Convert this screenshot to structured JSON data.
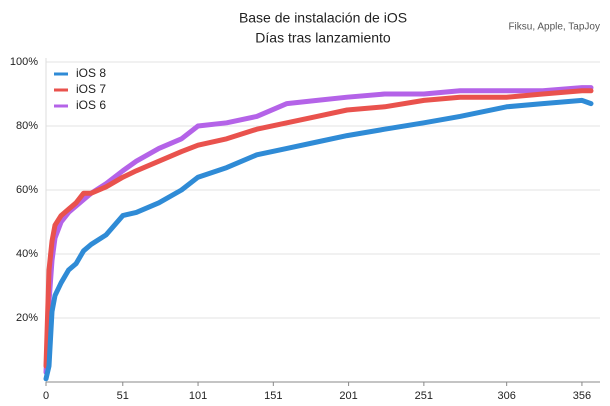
{
  "chart_data": {
    "type": "line",
    "title": "Base de instalación de iOS",
    "subtitle": "Días tras lanzamiento",
    "source": "Fiksu, Apple, TapJoy",
    "x": [
      0,
      2,
      4,
      6,
      10,
      15,
      20,
      25,
      30,
      40,
      51,
      60,
      75,
      90,
      101,
      120,
      140,
      160,
      180,
      200,
      225,
      251,
      275,
      306,
      330,
      356,
      362
    ],
    "series": [
      {
        "name": "iOS 8",
        "color": "#2f8bd6",
        "values": [
          1,
          5,
          22,
          27,
          31,
          35,
          37,
          41,
          43,
          46,
          52,
          53,
          56,
          60,
          64,
          67,
          71,
          73,
          75,
          77,
          79,
          81,
          83,
          86,
          87,
          88,
          87
        ]
      },
      {
        "name": "iOS 7",
        "color": "#e9524d",
        "values": [
          5,
          35,
          44,
          49,
          52,
          54,
          56,
          59,
          59,
          61,
          64,
          66,
          69,
          72,
          74,
          76,
          79,
          81,
          83,
          85,
          86,
          88,
          89,
          89,
          90,
          91,
          91
        ]
      },
      {
        "name": "iOS 6",
        "color": "#b463e8",
        "values": [
          3,
          25,
          38,
          45,
          50,
          53,
          55,
          57,
          59,
          62,
          66,
          69,
          73,
          76,
          80,
          81,
          83,
          87,
          88,
          89,
          90,
          90,
          91,
          91,
          91,
          92,
          92
        ]
      }
    ],
    "xlim": [
      0,
      368
    ],
    "xticks": [
      0,
      51,
      101,
      151,
      201,
      251,
      306,
      356
    ],
    "ylim": [
      0,
      100
    ],
    "yticks": [
      {
        "value": 20,
        "label": "20%"
      },
      {
        "value": 40,
        "label": "40%"
      },
      {
        "value": 60,
        "label": "60%"
      },
      {
        "value": 80,
        "label": "80%"
      },
      {
        "value": 100,
        "label": "100%"
      }
    ],
    "grid": true,
    "legend": "upper left"
  }
}
